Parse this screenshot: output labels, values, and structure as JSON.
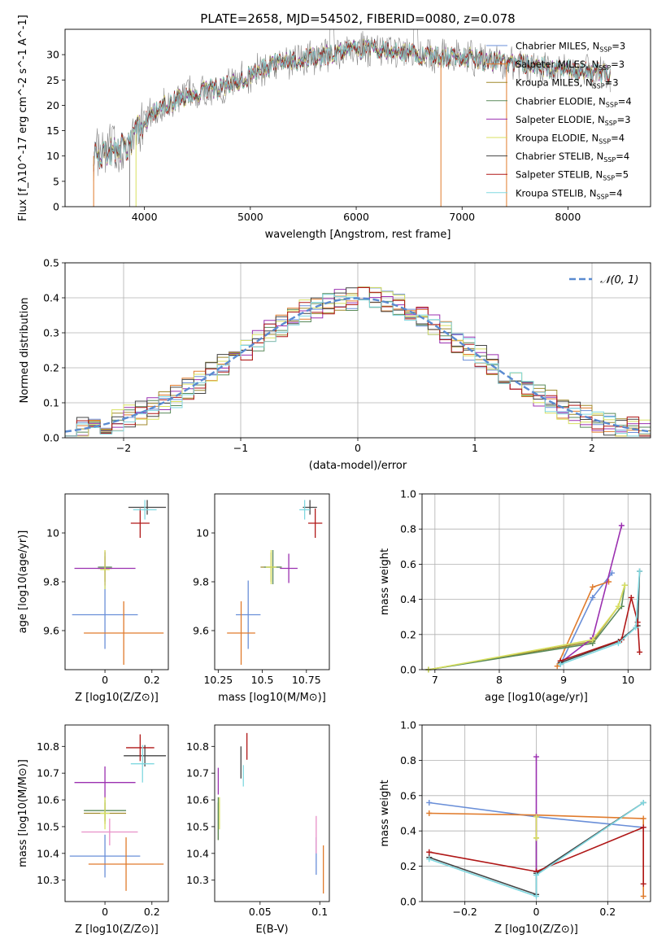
{
  "figure": {
    "title": "PLATE=2658, MJD=54502, FIBERID=0080, z=0.078"
  },
  "models": [
    {
      "name": "Chabrier MILES",
      "nssp": "3",
      "color": "#6a8fd8"
    },
    {
      "name": "Salpeter MILES",
      "nssp": "3",
      "color": "#e07b2c"
    },
    {
      "name": "Kroupa MILES",
      "nssp": "3",
      "color": "#a08a2c"
    },
    {
      "name": "Chabrier ELODIE",
      "nssp": "4",
      "color": "#5a8a5a"
    },
    {
      "name": "Salpeter ELODIE",
      "nssp": "3",
      "color": "#9b30b0"
    },
    {
      "name": "Kroupa ELODIE",
      "nssp": "4",
      "color": "#d8e060"
    },
    {
      "name": "Chabrier STELIB",
      "nssp": "4",
      "color": "#444444"
    },
    {
      "name": "Salpeter STELIB",
      "nssp": "5",
      "color": "#b01818"
    },
    {
      "name": "Kroupa STELIB",
      "nssp": "4",
      "color": "#80d8e0"
    }
  ],
  "chart_data": [
    {
      "id": "spectrum",
      "type": "line",
      "xlabel": "wavelength [Angstrom, rest frame]",
      "ylabel": "Flux [f_λ10^-17 erg cm^-2 s^-1 A^-1]",
      "xlim": [
        3250,
        8780
      ],
      "ylim": [
        0,
        35
      ],
      "xticks": [
        4000,
        5000,
        6000,
        7000,
        8000
      ],
      "yticks": [
        0,
        5,
        10,
        15,
        20,
        25,
        30
      ],
      "legend": "top-right",
      "data_envelope": {
        "x": [
          3520,
          3700,
          3850,
          4000,
          4200,
          4400,
          4600,
          4800,
          5000,
          5200,
          5400,
          5600,
          5800,
          6000,
          6200,
          6400,
          6600,
          6800,
          7000,
          7200,
          7400,
          7600,
          7800,
          8000,
          8200,
          8400
        ],
        "y": [
          10,
          11,
          12,
          17,
          20,
          22,
          23,
          24,
          26,
          28,
          29,
          29.5,
          30,
          31,
          31,
          30.5,
          30,
          29.5,
          29.5,
          29,
          28.5,
          28,
          27.5,
          27,
          26.5,
          26
        ]
      }
    },
    {
      "id": "residual-distribution",
      "type": "histogram",
      "xlabel": "(data-model)/error",
      "ylabel": "Normed distribution",
      "xlim": [
        -2.5,
        2.5
      ],
      "ylim": [
        0,
        0.5
      ],
      "xticks": [
        -2,
        -1,
        0,
        1,
        2
      ],
      "yticks": [
        0.0,
        0.1,
        0.2,
        0.3,
        0.4,
        0.5
      ],
      "grid": true,
      "legend": "top-right",
      "reference_label": "𝒩(0, 1)",
      "reference_color": "#5a8ad0"
    },
    {
      "id": "age-vs-Z",
      "type": "scatter",
      "xlabel": "Z [log10(Z/Z⊙)]",
      "ylabel": "age [log10(age/yr)]",
      "xlim": [
        -0.17,
        0.27
      ],
      "ylim": [
        9.44,
        10.16
      ],
      "xticks": [
        0.0,
        0.2
      ],
      "yticks": [
        9.6,
        9.8,
        10.0
      ],
      "points": [
        {
          "model": 0,
          "x": 0.0,
          "y": 9.665,
          "xerr": 0.14,
          "yerr": 0.14
        },
        {
          "model": 1,
          "x": 0.08,
          "y": 9.59,
          "xerr": 0.17,
          "yerr": 0.13
        },
        {
          "model": 2,
          "x": 0.0,
          "y": 9.855,
          "xerr": 0.03,
          "yerr": 0.05
        },
        {
          "model": 3,
          "x": 0.0,
          "y": 9.86,
          "xerr": 0.03,
          "yerr": 0.06
        },
        {
          "model": 4,
          "x": 0.0,
          "y": 9.855,
          "xerr": 0.13,
          "yerr": 0.07
        },
        {
          "model": 5,
          "x": 0.0,
          "y": 9.85,
          "xerr": 0.02,
          "yerr": 0.08
        },
        {
          "model": 6,
          "x": 0.18,
          "y": 10.105,
          "xerr": 0.08,
          "yerr": 0.03
        },
        {
          "model": 7,
          "x": 0.15,
          "y": 10.04,
          "xerr": 0.04,
          "yerr": 0.06
        },
        {
          "model": 8,
          "x": 0.17,
          "y": 10.095,
          "xerr": 0.05,
          "yerr": 0.04
        }
      ]
    },
    {
      "id": "age-vs-mass",
      "type": "scatter",
      "xlabel": "mass [log10(M/M⊙)]",
      "ylabel": "",
      "xlim": [
        10.23,
        10.88
      ],
      "ylim": [
        9.44,
        10.16
      ],
      "xticks": [
        10.25,
        10.5,
        10.75
      ],
      "yticks": [
        9.6,
        9.8,
        10.0
      ],
      "points": [
        {
          "model": 0,
          "x": 10.42,
          "y": 9.665,
          "xerr": 0.07,
          "yerr": 0.14
        },
        {
          "model": 1,
          "x": 10.38,
          "y": 9.59,
          "xerr": 0.08,
          "yerr": 0.13
        },
        {
          "model": 2,
          "x": 10.55,
          "y": 9.86,
          "xerr": 0.06,
          "yerr": 0.06
        },
        {
          "model": 3,
          "x": 10.56,
          "y": 9.86,
          "xerr": 0.05,
          "yerr": 0.07
        },
        {
          "model": 4,
          "x": 10.65,
          "y": 9.855,
          "xerr": 0.05,
          "yerr": 0.06
        },
        {
          "model": 5,
          "x": 10.55,
          "y": 9.86,
          "xerr": 0.03,
          "yerr": 0.07
        },
        {
          "model": 6,
          "x": 10.77,
          "y": 10.105,
          "xerr": 0.04,
          "yerr": 0.03
        },
        {
          "model": 7,
          "x": 10.8,
          "y": 10.04,
          "xerr": 0.04,
          "yerr": 0.06
        },
        {
          "model": 8,
          "x": 10.74,
          "y": 10.095,
          "xerr": 0.03,
          "yerr": 0.04
        }
      ]
    },
    {
      "id": "mass-weight-vs-age",
      "type": "line",
      "xlabel": "age [log10(age/yr)]",
      "ylabel": "mass weight",
      "xlim": [
        6.8,
        10.35
      ],
      "ylim": [
        0.0,
        1.0
      ],
      "xticks": [
        7,
        8,
        9,
        10
      ],
      "yticks": [
        0.0,
        0.2,
        0.4,
        0.6,
        0.8,
        1.0
      ],
      "grid": true,
      "series": [
        {
          "model": 0,
          "x": [
            8.95,
            9.45,
            9.75
          ],
          "y": [
            0.03,
            0.41,
            0.55
          ]
        },
        {
          "model": 1,
          "x": [
            8.9,
            9.45,
            9.7
          ],
          "y": [
            0.02,
            0.47,
            0.5
          ]
        },
        {
          "model": 2,
          "x": [
            6.9,
            9.45,
            9.85,
            9.95
          ],
          "y": [
            0.0,
            0.16,
            0.36,
            0.48
          ]
        },
        {
          "model": 3,
          "x": [
            6.9,
            9.45,
            9.9,
            9.95
          ],
          "y": [
            0.0,
            0.15,
            0.36,
            0.48
          ]
        },
        {
          "model": 4,
          "x": [
            8.95,
            9.45,
            9.9
          ],
          "y": [
            0.04,
            0.18,
            0.82
          ]
        },
        {
          "model": 5,
          "x": [
            6.9,
            9.45,
            9.85,
            9.95
          ],
          "y": [
            0.0,
            0.17,
            0.36,
            0.48
          ]
        },
        {
          "model": 6,
          "x": [
            8.95,
            9.85,
            10.15,
            10.18
          ],
          "y": [
            0.04,
            0.16,
            0.25,
            0.56
          ]
        },
        {
          "model": 7,
          "x": [
            8.95,
            9.9,
            10.05,
            10.15,
            10.18
          ],
          "y": [
            0.05,
            0.17,
            0.41,
            0.27,
            0.1
          ]
        },
        {
          "model": 8,
          "x": [
            8.95,
            9.85,
            10.12,
            10.18
          ],
          "y": [
            0.03,
            0.15,
            0.24,
            0.56
          ]
        }
      ]
    },
    {
      "id": "mass-vs-Z",
      "type": "scatter",
      "xlabel": "Z [log10(Z/Z⊙)]",
      "ylabel": "mass [log10(M/M⊙)]",
      "xlim": [
        -0.17,
        0.27
      ],
      "ylim": [
        10.22,
        10.88
      ],
      "xticks": [
        0.0,
        0.2
      ],
      "yticks": [
        10.3,
        10.4,
        10.5,
        10.6,
        10.7,
        10.8
      ],
      "points": [
        {
          "model": 0,
          "x": 0.0,
          "y": 10.39,
          "xerr": 0.15,
          "yerr": 0.08
        },
        {
          "model": 1,
          "x": 0.09,
          "y": 10.36,
          "xerr": 0.16,
          "yerr": 0.1
        },
        {
          "model": 2,
          "x": 0.0,
          "y": 10.55,
          "xerr": 0.09,
          "yerr": 0.04
        },
        {
          "model": 3,
          "x": 0.0,
          "y": 10.56,
          "xerr": 0.09,
          "yerr": 0.04
        },
        {
          "model": 4,
          "x": 0.0,
          "y": 10.665,
          "xerr": 0.13,
          "yerr": 0.06
        },
        {
          "model": 5,
          "x": 0.0,
          "y": 10.55,
          "xerr": 0.02,
          "yerr": 0.06
        },
        {
          "model": 6,
          "x": 0.17,
          "y": 10.765,
          "xerr": 0.09,
          "yerr": 0.04
        },
        {
          "model": 7,
          "x": 0.15,
          "y": 10.795,
          "xerr": 0.06,
          "yerr": 0.05
        },
        {
          "model": 8,
          "x": 0.16,
          "y": 10.735,
          "xerr": 0.05,
          "yerr": 0.07
        },
        {
          "model": 9,
          "x": 0.02,
          "y": 10.48,
          "xerr": 0.12,
          "yerr": 0.05
        }
      ]
    },
    {
      "id": "mass-vs-ebv",
      "type": "scatter",
      "xlabel": "E(B-V)",
      "ylabel": "",
      "xlim": [
        0.012,
        0.108
      ],
      "ylim": [
        10.22,
        10.88
      ],
      "xticks": [
        0.05,
        0.1
      ],
      "yticks": [
        10.3,
        10.4,
        10.5,
        10.6,
        10.7,
        10.8
      ],
      "points": [
        {
          "model": 0,
          "x": 0.097,
          "y": 10.39,
          "xerr": 0.0,
          "yerr": 0.07
        },
        {
          "model": 1,
          "x": 0.103,
          "y": 10.34,
          "xerr": 0.0,
          "yerr": 0.09
        },
        {
          "model": 2,
          "x": 0.015,
          "y": 10.52,
          "xerr": 0.0,
          "yerr": 0.07
        },
        {
          "model": 3,
          "x": 0.015,
          "y": 10.53,
          "xerr": 0.0,
          "yerr": 0.08
        },
        {
          "model": 4,
          "x": 0.015,
          "y": 10.67,
          "xerr": 0.0,
          "yerr": 0.05
        },
        {
          "model": 5,
          "x": 0.016,
          "y": 10.55,
          "xerr": 0.0,
          "yerr": 0.06
        },
        {
          "model": 6,
          "x": 0.034,
          "y": 10.74,
          "xerr": 0.0,
          "yerr": 0.06
        },
        {
          "model": 7,
          "x": 0.039,
          "y": 10.8,
          "xerr": 0.0,
          "yerr": 0.05
        },
        {
          "model": 8,
          "x": 0.036,
          "y": 10.69,
          "xerr": 0.0,
          "yerr": 0.04
        },
        {
          "model": 9,
          "x": 0.097,
          "y": 10.47,
          "xerr": 0.0,
          "yerr": 0.07
        }
      ]
    },
    {
      "id": "mass-weight-vs-Z",
      "type": "line",
      "xlabel": "Z [log10(Z/Z⊙)]",
      "ylabel": "mass weight",
      "xlim": [
        -0.32,
        0.32
      ],
      "ylim": [
        0.0,
        1.0
      ],
      "xticks": [
        -0.2,
        0.0,
        0.2
      ],
      "yticks": [
        0.0,
        0.2,
        0.4,
        0.6,
        0.8,
        1.0
      ],
      "grid": true,
      "series": [
        {
          "model": 0,
          "x": [
            -0.3,
            0.0,
            0.3
          ],
          "y": [
            0.56,
            0.48,
            0.42
          ]
        },
        {
          "model": 1,
          "x": [
            -0.3,
            0.0,
            0.3,
            0.3
          ],
          "y": [
            0.5,
            0.49,
            0.47,
            0.03
          ]
        },
        {
          "model": 2,
          "x": [
            0.0,
            0.0
          ],
          "y": [
            0.48,
            0.36
          ]
        },
        {
          "model": 3,
          "x": [
            0.0,
            0.0
          ],
          "y": [
            0.48,
            0.17
          ]
        },
        {
          "model": 4,
          "x": [
            0.0,
            0.0
          ],
          "y": [
            0.82,
            0.17
          ]
        },
        {
          "model": 5,
          "x": [
            0.0,
            0.0
          ],
          "y": [
            0.48,
            0.36
          ]
        },
        {
          "model": 6,
          "x": [
            -0.3,
            0.0,
            0.0,
            0.3
          ],
          "y": [
            0.25,
            0.04,
            0.16,
            0.56
          ]
        },
        {
          "model": 7,
          "x": [
            -0.3,
            0.0,
            0.3,
            0.3
          ],
          "y": [
            0.28,
            0.17,
            0.42,
            0.1
          ]
        },
        {
          "model": 8,
          "x": [
            -0.3,
            0.0,
            0.0,
            0.3
          ],
          "y": [
            0.24,
            0.03,
            0.15,
            0.56
          ]
        }
      ]
    }
  ]
}
